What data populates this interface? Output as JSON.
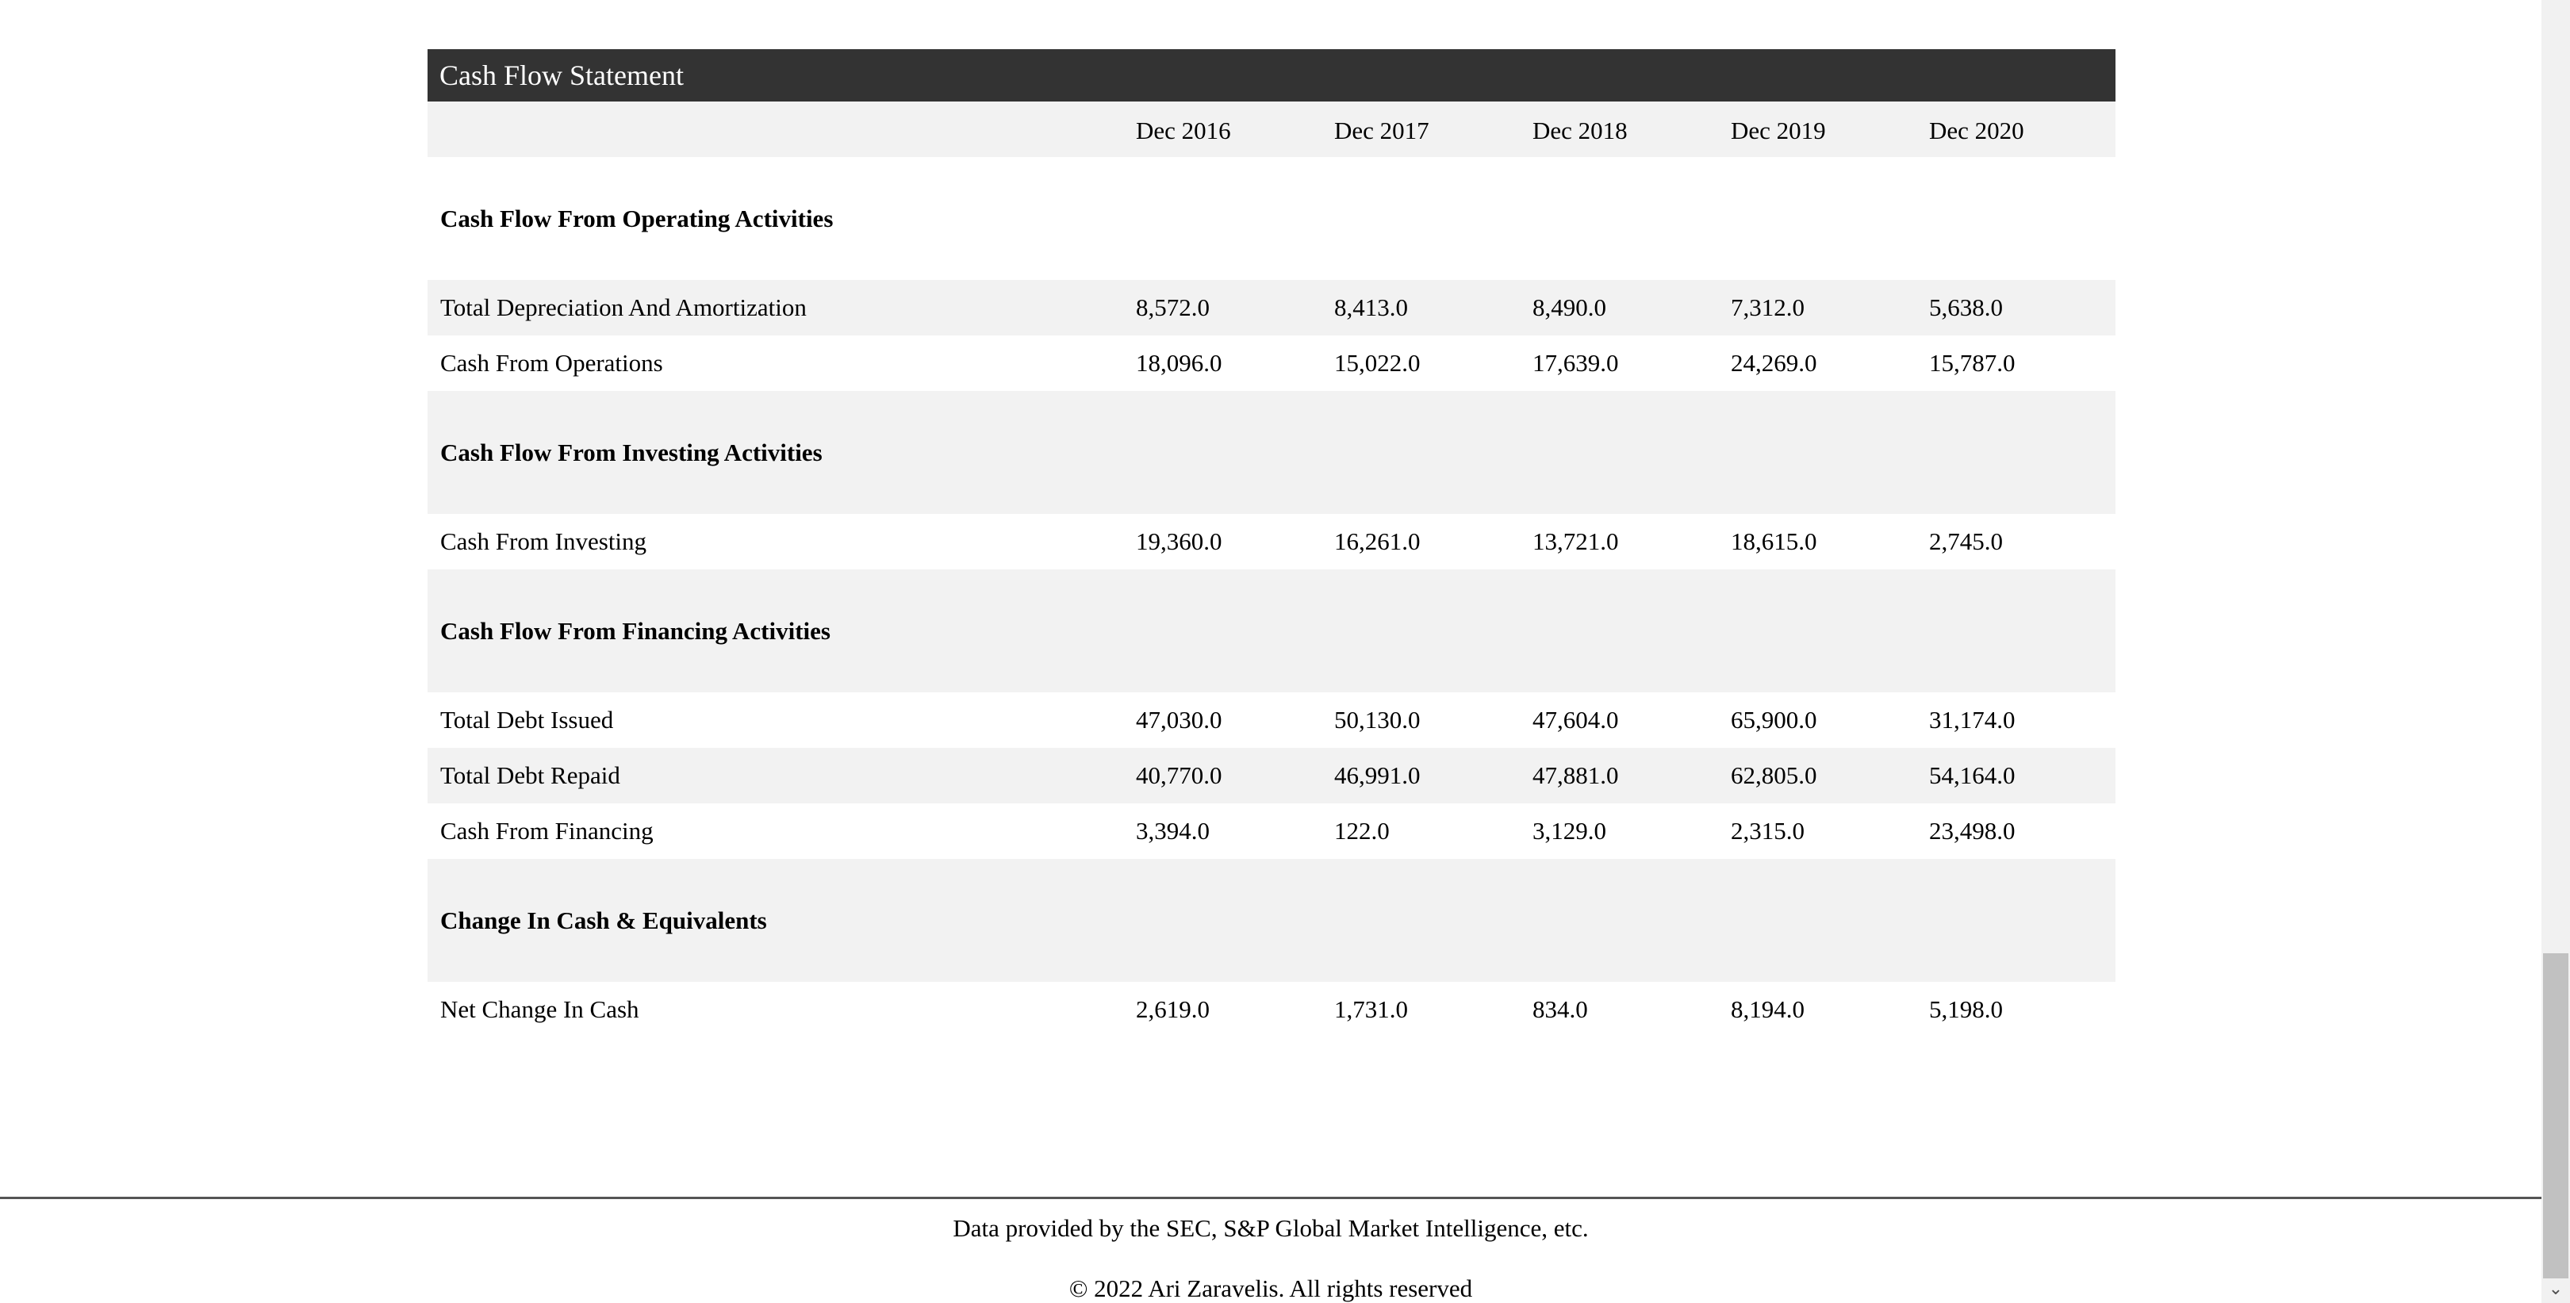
{
  "table": {
    "title": "Cash Flow Statement",
    "columns": [
      "",
      "Dec 2016",
      "Dec 2017",
      "Dec 2018",
      "Dec 2019",
      "Dec 2020"
    ],
    "rows": [
      {
        "type": "section",
        "label": "Cash Flow From Operating Activities",
        "values": [
          "",
          "",
          "",
          "",
          ""
        ]
      },
      {
        "type": "row",
        "label": "Total Depreciation And Amortization",
        "values": [
          "8,572.0",
          "8,413.0",
          "8,490.0",
          "7,312.0",
          "5,638.0"
        ]
      },
      {
        "type": "row",
        "label": "Cash From Operations",
        "values": [
          "18,096.0",
          "15,022.0",
          "17,639.0",
          "24,269.0",
          "15,787.0"
        ]
      },
      {
        "type": "section",
        "label": "Cash Flow From Investing Activities",
        "values": [
          "",
          "",
          "",
          "",
          ""
        ]
      },
      {
        "type": "row",
        "label": "Cash From Investing",
        "values": [
          "19,360.0",
          "16,261.0",
          "13,721.0",
          "18,615.0",
          "2,745.0"
        ]
      },
      {
        "type": "section",
        "label": "Cash Flow From Financing Activities",
        "values": [
          "",
          "",
          "",
          "",
          ""
        ]
      },
      {
        "type": "row",
        "label": "Total Debt Issued",
        "values": [
          "47,030.0",
          "50,130.0",
          "47,604.0",
          "65,900.0",
          "31,174.0"
        ]
      },
      {
        "type": "row",
        "label": "Total Debt Repaid",
        "values": [
          "40,770.0",
          "46,991.0",
          "47,881.0",
          "62,805.0",
          "54,164.0"
        ]
      },
      {
        "type": "row",
        "label": "Cash From Financing",
        "values": [
          "3,394.0",
          "122.0",
          "3,129.0",
          "2,315.0",
          "23,498.0"
        ]
      },
      {
        "type": "section",
        "label": "Change In Cash & Equivalents",
        "values": [
          "",
          "",
          "",
          "",
          ""
        ]
      },
      {
        "type": "row",
        "label": "Net Change In Cash",
        "values": [
          "2,619.0",
          "1,731.0",
          "834.0",
          "8,194.0",
          "5,198.0"
        ]
      }
    ]
  },
  "footer": {
    "source": "Data provided by the SEC, S&P Global Market Intelligence, etc.",
    "copyright": "© 2022 Ari Zaravelis. All rights reserved"
  },
  "scrollbar": {
    "down_arrow_icon": "chevron-down-icon"
  },
  "colors": {
    "title_bar": "#333333",
    "shade": "#f2f2f2"
  }
}
